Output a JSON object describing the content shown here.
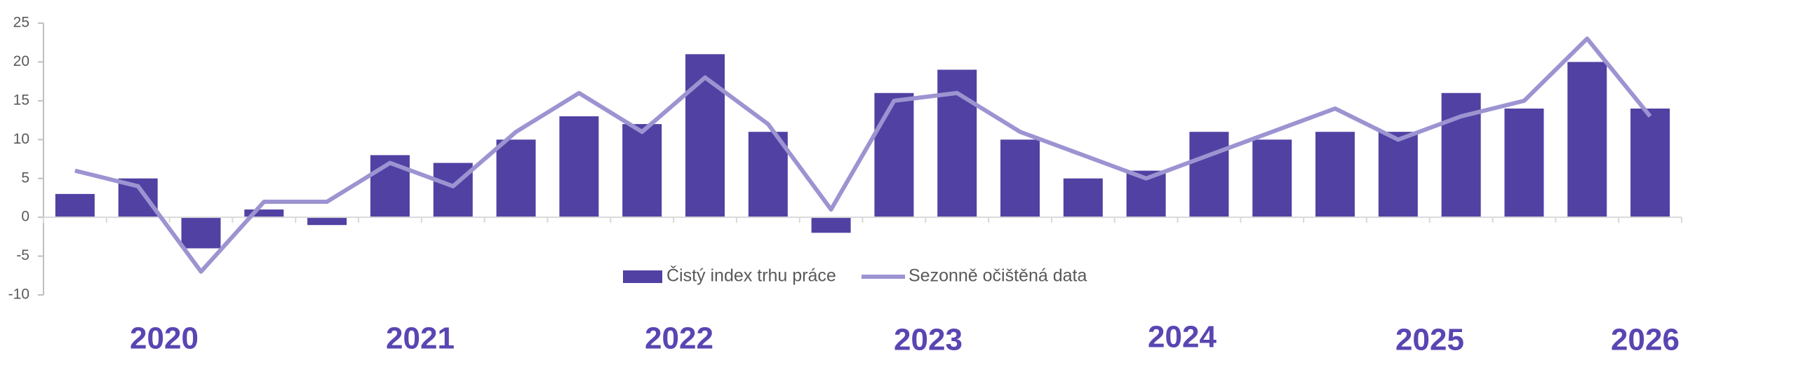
{
  "chart_data": {
    "type": "bar_line",
    "categories": [
      null,
      null,
      null,
      null,
      null,
      null,
      null,
      null,
      null,
      null,
      null,
      null,
      null,
      null,
      null,
      null,
      null,
      null,
      null,
      null,
      null,
      null,
      null,
      null,
      null,
      null
    ],
    "series": [
      {
        "name": "Čistý index trhu práce",
        "type": "bar",
        "color": "#5041a3",
        "values": [
          3,
          5,
          -4,
          1,
          -1,
          8,
          7,
          10,
          13,
          12,
          21,
          11,
          -2,
          16,
          19,
          10,
          5,
          6,
          11,
          10,
          11,
          11,
          16,
          14,
          20,
          14
        ]
      },
      {
        "name": "Sezonně očištěná data",
        "type": "line",
        "color": "#9c94d1",
        "values": [
          6,
          4,
          -7,
          2,
          2,
          7,
          4,
          11,
          16,
          11,
          18,
          12,
          1,
          15,
          16,
          11,
          8,
          5,
          8,
          11,
          14,
          10,
          13,
          15,
          23,
          13
        ]
      }
    ],
    "group_labels": [
      "2020",
      "2021",
      "2022",
      "2023",
      "2024",
      "2025",
      "2026"
    ],
    "ylim": [
      -10,
      25
    ],
    "yticks": [
      -10,
      -5,
      0,
      5,
      10,
      15,
      20,
      25
    ],
    "grid": false,
    "legend": "bottom"
  }
}
